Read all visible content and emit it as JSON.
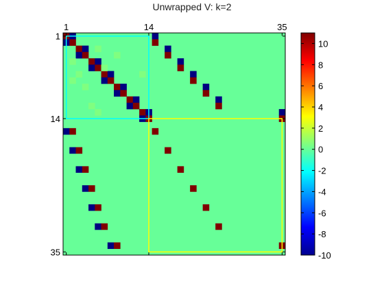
{
  "chart_data": {
    "type": "heatmap",
    "title": "Unwrapped V: k=2",
    "n": 35,
    "block_split": 14,
    "x_tick_labels": [
      "1",
      "14",
      "35"
    ],
    "y_tick_labels": [
      "1",
      "14",
      "35"
    ],
    "colorbar": {
      "colormap": "jet",
      "range": [
        -10,
        11
      ],
      "tick_labels": [
        "10",
        "8",
        "6",
        "4",
        "2",
        "0",
        "-2",
        "-4",
        "-6",
        "-8",
        "-10"
      ]
    },
    "background_value": 0,
    "block_outlines": [
      {
        "rows": [
          1,
          14
        ],
        "cols": [
          1,
          14
        ],
        "color": "#00ffff"
      },
      {
        "rows": [
          14,
          35
        ],
        "cols": [
          14,
          35
        ],
        "color": "#ffff00"
      }
    ],
    "cells": [
      [
        1,
        1,
        11
      ],
      [
        1,
        2,
        -10
      ],
      [
        2,
        1,
        -10
      ],
      [
        2,
        2,
        11
      ],
      [
        3,
        3,
        11
      ],
      [
        3,
        4,
        -10
      ],
      [
        4,
        3,
        -10
      ],
      [
        4,
        4,
        11
      ],
      [
        5,
        5,
        11
      ],
      [
        5,
        6,
        -10
      ],
      [
        6,
        5,
        -10
      ],
      [
        6,
        6,
        11
      ],
      [
        7,
        7,
        11
      ],
      [
        7,
        8,
        -10
      ],
      [
        8,
        7,
        -10
      ],
      [
        8,
        8,
        11
      ],
      [
        9,
        9,
        11
      ],
      [
        9,
        10,
        -10
      ],
      [
        10,
        9,
        -10
      ],
      [
        10,
        10,
        11
      ],
      [
        11,
        11,
        11
      ],
      [
        11,
        12,
        -10
      ],
      [
        12,
        11,
        -10
      ],
      [
        12,
        12,
        11
      ],
      [
        13,
        13,
        11
      ],
      [
        13,
        14,
        -10
      ],
      [
        14,
        13,
        -10
      ],
      [
        14,
        14,
        11
      ],
      [
        3,
        6,
        0.5
      ],
      [
        4,
        9,
        0.5
      ],
      [
        5,
        2,
        0.5
      ],
      [
        7,
        3,
        0.5
      ],
      [
        6,
        7,
        0.5
      ],
      [
        8,
        2,
        0.5
      ],
      [
        9,
        4,
        0.5
      ],
      [
        7,
        13,
        0.5
      ],
      [
        12,
        5,
        0.5
      ],
      [
        13,
        6,
        0.5
      ],
      [
        1,
        15,
        -10
      ],
      [
        2,
        15,
        11
      ],
      [
        3,
        17,
        -10
      ],
      [
        4,
        17,
        11
      ],
      [
        5,
        19,
        -10
      ],
      [
        6,
        19,
        11
      ],
      [
        7,
        21,
        -10
      ],
      [
        8,
        21,
        11
      ],
      [
        9,
        23,
        -10
      ],
      [
        10,
        23,
        11
      ],
      [
        11,
        25,
        -10
      ],
      [
        12,
        25,
        11
      ],
      [
        13,
        35,
        -10
      ],
      [
        14,
        35,
        11
      ],
      [
        16,
        1,
        -10
      ],
      [
        16,
        2,
        11
      ],
      [
        19,
        2,
        -10
      ],
      [
        19,
        3,
        11
      ],
      [
        22,
        3,
        -10
      ],
      [
        22,
        4,
        11
      ],
      [
        25,
        4,
        -10
      ],
      [
        25,
        5,
        11
      ],
      [
        28,
        5,
        -10
      ],
      [
        28,
        6,
        11
      ],
      [
        31,
        6,
        -10
      ],
      [
        31,
        7,
        11
      ],
      [
        34,
        8,
        -10
      ],
      [
        34,
        9,
        11
      ],
      [
        16,
        15,
        11
      ],
      [
        19,
        17,
        11
      ],
      [
        22,
        19,
        11
      ],
      [
        25,
        21,
        11
      ],
      [
        28,
        23,
        11
      ],
      [
        31,
        25,
        11
      ],
      [
        34,
        35,
        11
      ]
    ]
  }
}
